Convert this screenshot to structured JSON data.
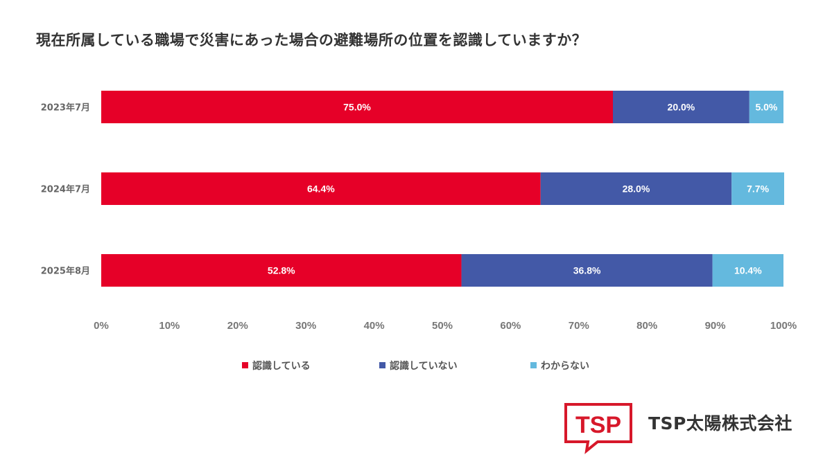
{
  "chart_data": {
    "type": "bar",
    "orientation": "horizontal",
    "stacked": true,
    "title": "現在所属している職場で災害にあった場合の避難場所の位置を認識していますか？",
    "categories": [
      "2023年7月",
      "2024年7月",
      "2025年8月"
    ],
    "series": [
      {
        "name": "認識している",
        "color": "#E60028",
        "values": [
          75.0,
          64.4,
          52.8
        ],
        "labels": [
          "75.0%",
          "64.4%",
          "52.8%"
        ]
      },
      {
        "name": "認識していない",
        "color": "#4359A7",
        "values": [
          20.0,
          28.0,
          36.8
        ],
        "labels": [
          "20.0%",
          "28.0%",
          "36.8%"
        ]
      },
      {
        "name": "わからない",
        "color": "#64B9DE",
        "values": [
          5.0,
          7.7,
          10.4
        ],
        "labels": [
          "5.0%",
          "7.7%",
          "10.4%"
        ]
      }
    ],
    "xlim": [
      0,
      100
    ],
    "xticks": [
      "0%",
      "10%",
      "20%",
      "30%",
      "40%",
      "50%",
      "60%",
      "70%",
      "80%",
      "90%",
      "100%"
    ],
    "legend_position": "bottom",
    "grid": false
  },
  "company": {
    "logo_text": "TSP",
    "name": "TSP太陽株式会社",
    "logo_color": "#D7182A"
  }
}
